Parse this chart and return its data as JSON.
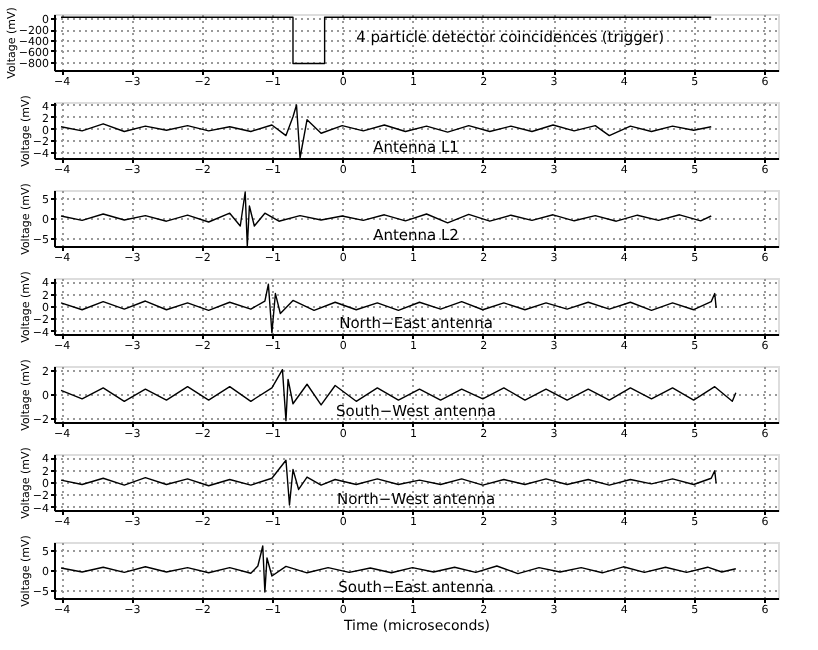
{
  "chart_data": [
    {
      "type": "line",
      "title": "4 particle detector coincidences (trigger)",
      "ylabel": "Voltage (mV)",
      "color": "#000000",
      "xlim": [
        -4.1,
        6.2
      ],
      "xticks": [
        -4,
        -3,
        -2,
        -1,
        0,
        1,
        2,
        3,
        4,
        5,
        6
      ],
      "ylim": [
        -950,
        80
      ],
      "yticks": [
        -800,
        -600,
        -400,
        -200,
        0
      ],
      "grid": true,
      "x": [
        -4,
        -3,
        -2,
        -1,
        -0.7,
        -0.7,
        -0.25,
        -0.25,
        1,
        2,
        3,
        4,
        5,
        5.25
      ],
      "values": [
        20,
        20,
        20,
        20,
        20,
        -830,
        -830,
        20,
        20,
        20,
        20,
        20,
        20,
        20
      ]
    },
    {
      "type": "line",
      "title": "Antenna L1",
      "ylabel": "Voltage (mV)",
      "color": "#000000",
      "xlim": [
        -4.1,
        6.2
      ],
      "xticks": [
        -4,
        -3,
        -2,
        -1,
        0,
        1,
        2,
        3,
        4,
        5,
        6
      ],
      "ylim": [
        -5,
        4.5
      ],
      "yticks": [
        -4,
        -2,
        0,
        2,
        4
      ],
      "grid": true,
      "x": [
        -4,
        -3.7,
        -3.4,
        -3.1,
        -2.8,
        -2.5,
        -2.2,
        -1.9,
        -1.6,
        -1.3,
        -1.0,
        -0.8,
        -0.7,
        -0.65,
        -0.6,
        -0.5,
        -0.3,
        0,
        0.3,
        0.6,
        0.9,
        1.2,
        1.5,
        1.8,
        2.1,
        2.4,
        2.7,
        3.0,
        3.3,
        3.6,
        3.8,
        4.1,
        4.4,
        4.7,
        5.0,
        5.25
      ],
      "values": [
        0.3,
        -0.4,
        0.8,
        -0.5,
        0.4,
        -0.3,
        0.5,
        -0.4,
        0.3,
        -0.5,
        0.6,
        -1.2,
        2,
        4,
        -5,
        1.5,
        -0.8,
        0.5,
        -0.4,
        0.6,
        -0.5,
        0.4,
        -0.6,
        0.5,
        -0.5,
        0.4,
        -0.5,
        0.6,
        -0.4,
        0.5,
        -1.2,
        0.4,
        -0.5,
        0.4,
        -0.3,
        0.3
      ]
    },
    {
      "type": "line",
      "title": "Antenna L2",
      "ylabel": "Voltage (mV)",
      "color": "#000000",
      "xlim": [
        -4.1,
        6.2
      ],
      "xticks": [
        -4,
        -3,
        -2,
        -1,
        0,
        1,
        2,
        3,
        4,
        5,
        6
      ],
      "ylim": [
        -7,
        7
      ],
      "yticks": [
        -5,
        0,
        5
      ],
      "grid": true,
      "x": [
        -4,
        -3.7,
        -3.4,
        -3.1,
        -2.8,
        -2.5,
        -2.2,
        -1.9,
        -1.6,
        -1.45,
        -1.38,
        -1.35,
        -1.32,
        -1.25,
        -1.1,
        -0.9,
        -0.6,
        -0.3,
        0,
        0.3,
        0.6,
        0.9,
        1.2,
        1.5,
        1.8,
        2.1,
        2.4,
        2.7,
        3.0,
        3.3,
        3.6,
        3.9,
        4.2,
        4.5,
        4.8,
        5.1,
        5.25
      ],
      "values": [
        0.5,
        -0.6,
        1,
        -0.5,
        0.6,
        -0.8,
        0.7,
        -1,
        1.2,
        -2,
        6.5,
        -7,
        3,
        -2,
        1.2,
        -0.8,
        0.6,
        -0.5,
        0.5,
        -0.6,
        0.8,
        -0.7,
        1,
        -1.2,
        0.9,
        -0.8,
        0.7,
        -0.6,
        0.8,
        -0.7,
        0.6,
        -0.8,
        0.7,
        -0.6,
        0.8,
        -0.7,
        0.5
      ]
    },
    {
      "type": "line",
      "title": "North−East antenna",
      "ylabel": "Voltage (mV)",
      "color": "#000000",
      "xlim": [
        -4.1,
        6.2
      ],
      "xticks": [
        -4,
        -3,
        -2,
        -1,
        0,
        1,
        2,
        3,
        4,
        5,
        6
      ],
      "ylim": [
        -4.5,
        4.5
      ],
      "yticks": [
        -4,
        -2,
        0,
        2,
        4
      ],
      "grid": true,
      "x": [
        -4,
        -3.7,
        -3.4,
        -3.1,
        -2.8,
        -2.5,
        -2.2,
        -1.9,
        -1.6,
        -1.3,
        -1.1,
        -1.05,
        -1.0,
        -0.95,
        -0.88,
        -0.7,
        -0.4,
        -0.1,
        0.2,
        0.5,
        0.8,
        1.1,
        1.4,
        1.7,
        2.0,
        2.3,
        2.6,
        2.9,
        3.2,
        3.5,
        3.8,
        4.1,
        4.4,
        4.7,
        5.0,
        5.25,
        5.3,
        5.32
      ],
      "values": [
        0.5,
        -0.6,
        0.7,
        -0.5,
        0.8,
        -0.6,
        0.5,
        -0.7,
        0.6,
        -0.5,
        0.8,
        3.5,
        -4.3,
        2,
        -1.2,
        0.9,
        -0.7,
        0.6,
        -0.6,
        0.5,
        -0.7,
        0.6,
        -0.5,
        0.7,
        -0.6,
        0.5,
        -0.6,
        0.5,
        -0.5,
        0.6,
        -0.5,
        0.6,
        -0.7,
        0.5,
        -0.6,
        0.7,
        2,
        -0.3
      ]
    },
    {
      "type": "line",
      "title": "South−West antenna",
      "ylabel": "Voltage (mV)",
      "color": "#000000",
      "xlim": [
        -4.1,
        6.2
      ],
      "xticks": [
        -4,
        -3,
        -2,
        -1,
        0,
        1,
        2,
        3,
        4,
        5,
        6
      ],
      "ylim": [
        -2.3,
        2.3
      ],
      "yticks": [
        -2,
        0,
        2
      ],
      "grid": true,
      "x": [
        -4,
        -3.7,
        -3.4,
        -3.1,
        -2.8,
        -2.5,
        -2.2,
        -1.9,
        -1.6,
        -1.3,
        -1.0,
        -0.85,
        -0.8,
        -0.77,
        -0.7,
        -0.5,
        -0.3,
        -0.1,
        0.2,
        0.5,
        0.8,
        1.1,
        1.4,
        1.7,
        2.0,
        2.3,
        2.6,
        2.9,
        3.2,
        3.5,
        3.8,
        4.1,
        4.4,
        4.7,
        5.0,
        5.3,
        5.55,
        5.6
      ],
      "values": [
        0.3,
        -0.4,
        0.5,
        -0.6,
        0.4,
        -0.5,
        0.6,
        -0.5,
        0.6,
        -0.6,
        0.5,
        2,
        -2.2,
        1.2,
        -0.8,
        0.8,
        -0.9,
        0.7,
        -0.6,
        0.5,
        -0.5,
        0.4,
        -0.5,
        0.4,
        -0.4,
        0.5,
        -0.5,
        0.4,
        -0.5,
        0.4,
        -0.5,
        0.5,
        -0.4,
        0.5,
        -0.5,
        0.6,
        -0.6,
        0.1
      ]
    },
    {
      "type": "line",
      "title": "North−West antenna",
      "ylabel": "Voltage (mV)",
      "color": "#000000",
      "xlim": [
        -4.1,
        6.2
      ],
      "xticks": [
        -4,
        -3,
        -2,
        -1,
        0,
        1,
        2,
        3,
        4,
        5,
        6
      ],
      "ylim": [
        -4.5,
        4.5
      ],
      "yticks": [
        -4,
        -2,
        0,
        2,
        4
      ],
      "grid": true,
      "x": [
        -4,
        -3.7,
        -3.4,
        -3.1,
        -2.8,
        -2.5,
        -2.2,
        -1.9,
        -1.6,
        -1.3,
        -1.0,
        -0.8,
        -0.75,
        -0.7,
        -0.62,
        -0.5,
        -0.3,
        -0.1,
        0.2,
        0.5,
        0.8,
        1.1,
        1.4,
        1.7,
        2.0,
        2.3,
        2.6,
        2.9,
        3.2,
        3.5,
        3.8,
        4.1,
        4.4,
        4.7,
        5.0,
        5.25,
        5.3,
        5.32
      ],
      "values": [
        0.3,
        -0.4,
        0.6,
        -0.5,
        0.7,
        -0.4,
        0.5,
        -0.6,
        0.4,
        -0.5,
        0.6,
        3.5,
        -3.7,
        2,
        -1.2,
        0.8,
        -0.5,
        0.4,
        -0.4,
        0.5,
        -0.4,
        0.3,
        -0.4,
        0.5,
        -0.5,
        0.4,
        -0.4,
        0.5,
        -0.4,
        0.4,
        -0.5,
        0.4,
        -0.3,
        0.5,
        -0.4,
        0.6,
        1.8,
        -0.2
      ]
    },
    {
      "type": "line",
      "title": "South−East antenna",
      "xlabel": "Time (microseconds)",
      "ylabel": "Voltage (mV)",
      "color": "#000000",
      "xlim": [
        -4.1,
        6.2
      ],
      "xticks": [
        -4,
        -3,
        -2,
        -1,
        0,
        1,
        2,
        3,
        4,
        5,
        6
      ],
      "ylim": [
        -7,
        7
      ],
      "yticks": [
        -5,
        0,
        5
      ],
      "grid": true,
      "x": [
        -4,
        -3.7,
        -3.4,
        -3.1,
        -2.8,
        -2.5,
        -2.2,
        -1.9,
        -1.6,
        -1.3,
        -1.2,
        -1.13,
        -1.1,
        -1.07,
        -1.0,
        -0.8,
        -0.5,
        -0.2,
        0.1,
        0.4,
        0.7,
        1.0,
        1.3,
        1.6,
        1.9,
        2.2,
        2.5,
        2.8,
        3.1,
        3.4,
        3.7,
        4.0,
        4.3,
        4.6,
        4.9,
        5.2,
        5.4,
        5.6
      ],
      "values": [
        0.5,
        -0.5,
        0.7,
        -0.6,
        0.8,
        -0.5,
        0.6,
        -0.7,
        0.6,
        -0.8,
        1,
        6,
        -5.5,
        3,
        -1.5,
        0.9,
        -0.7,
        0.6,
        -0.6,
        0.5,
        -0.7,
        0.6,
        -0.5,
        0.7,
        -0.6,
        1,
        -0.9,
        0.6,
        -0.5,
        0.6,
        -0.7,
        0.8,
        -0.6,
        0.7,
        -0.6,
        0.7,
        -0.5,
        0.3
      ]
    }
  ]
}
